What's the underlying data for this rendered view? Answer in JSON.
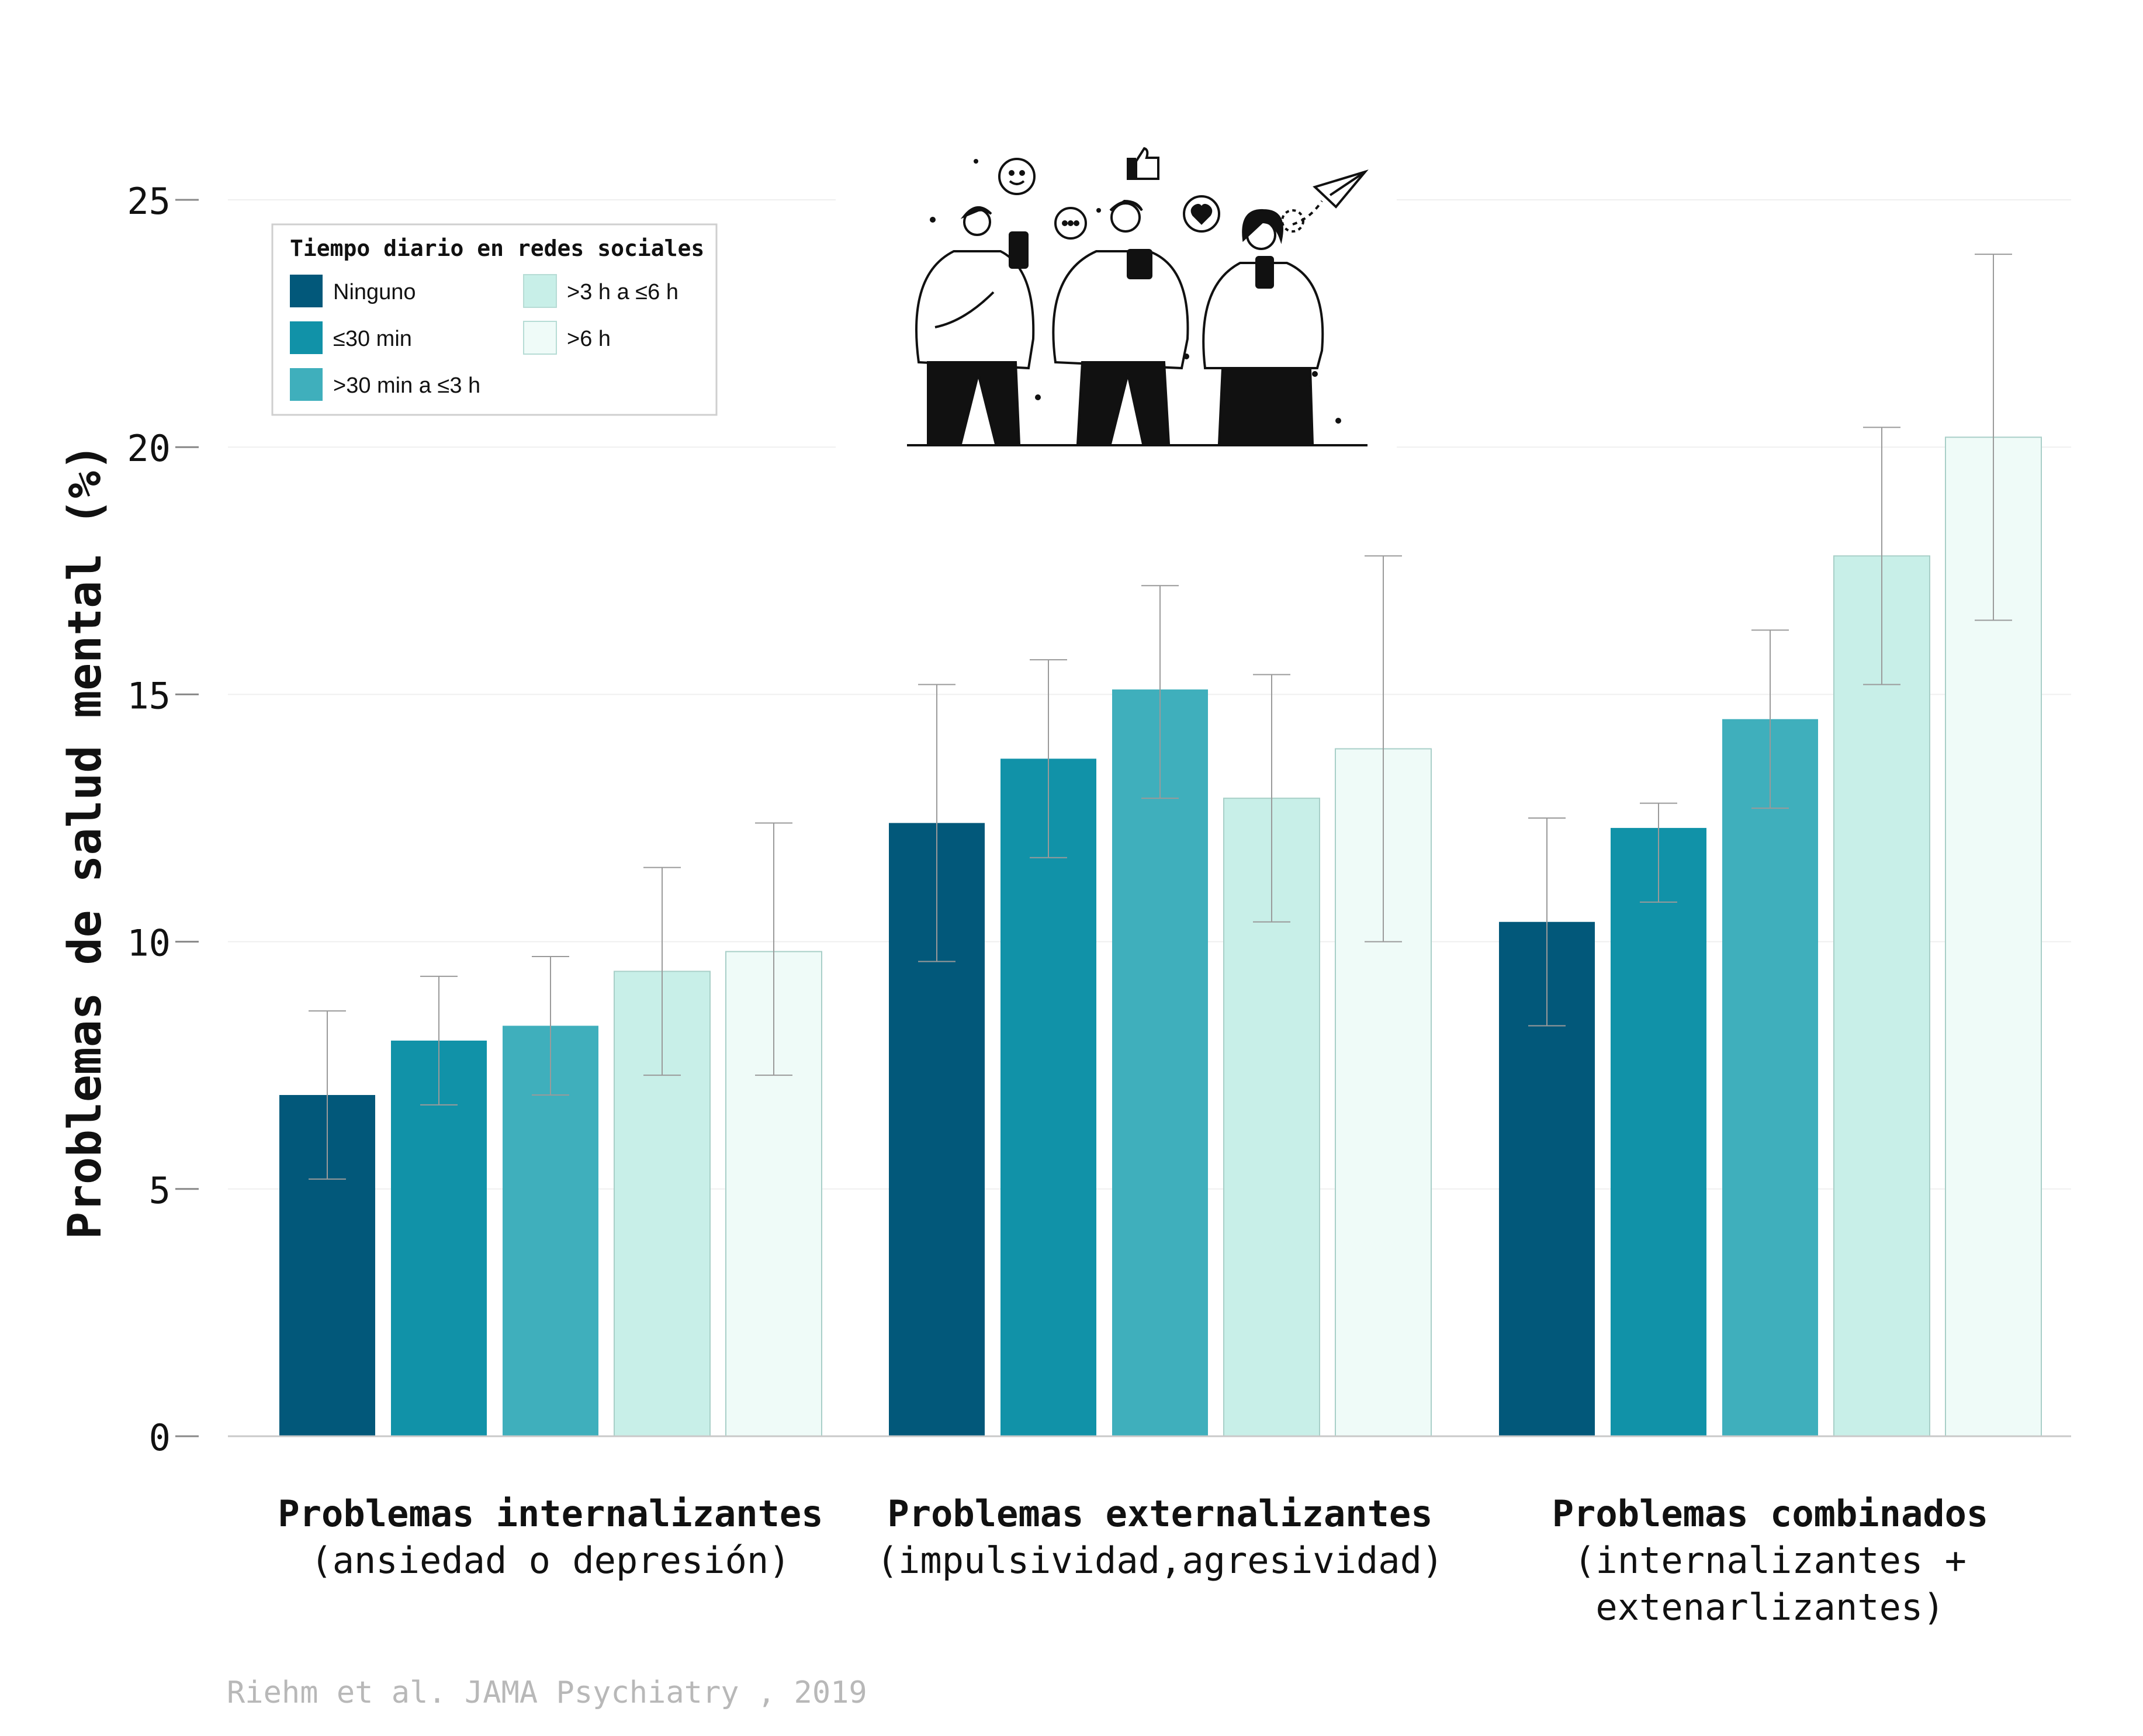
{
  "chart_data": {
    "type": "bar",
    "ylabel": "Problemas de salud mental (%)",
    "ylim": [
      0,
      25
    ],
    "yticks": [
      0,
      5,
      10,
      15,
      20,
      25
    ],
    "grid": true,
    "legend_title": "Tiempo diario en redes sociales",
    "legend_position": "top-left",
    "categories": [
      {
        "line1": "Problemas internalizantes",
        "line2": "(ansiedad o depresión)",
        "line3": ""
      },
      {
        "line1": "Problemas externalizantes",
        "line2": "(impulsividad,agresividad)",
        "line3": ""
      },
      {
        "line1": "Problemas combinados",
        "line2": "(internalizantes +",
        "line3": "extenarlizantes)"
      }
    ],
    "series": [
      {
        "name": "Ninguno",
        "color": "#02587a",
        "values": [
          6.9,
          12.4,
          10.4
        ],
        "ci_low": [
          5.2,
          9.6,
          8.3
        ],
        "ci_high": [
          8.6,
          15.2,
          12.5
        ]
      },
      {
        "name": "≤30 min",
        "color": "#1192a8",
        "values": [
          8.0,
          13.7,
          12.3
        ],
        "ci_low": [
          6.7,
          11.7,
          10.8
        ],
        "ci_high": [
          9.3,
          15.7,
          12.8
        ]
      },
      {
        "name": ">30 min a ≤3 h",
        "color": "#3fafbc",
        "values": [
          8.3,
          15.1,
          14.5
        ],
        "ci_low": [
          6.9,
          12.9,
          12.7
        ],
        "ci_high": [
          9.7,
          17.2,
          16.3
        ]
      },
      {
        "name": ">3 h a ≤6 h",
        "color": "#c8efe8",
        "values": [
          9.4,
          12.9,
          17.8
        ],
        "ci_low": [
          7.3,
          10.4,
          15.2
        ],
        "ci_high": [
          11.5,
          15.4,
          20.4
        ]
      },
      {
        "name": ">6 h",
        "color": "#effbf8",
        "values": [
          9.8,
          13.9,
          20.2
        ],
        "ci_low": [
          7.3,
          10.0,
          16.5
        ],
        "ci_high": [
          12.4,
          17.8,
          23.9
        ]
      }
    ]
  },
  "source": "Riehm et al. JAMA Psychiatry , 2019"
}
